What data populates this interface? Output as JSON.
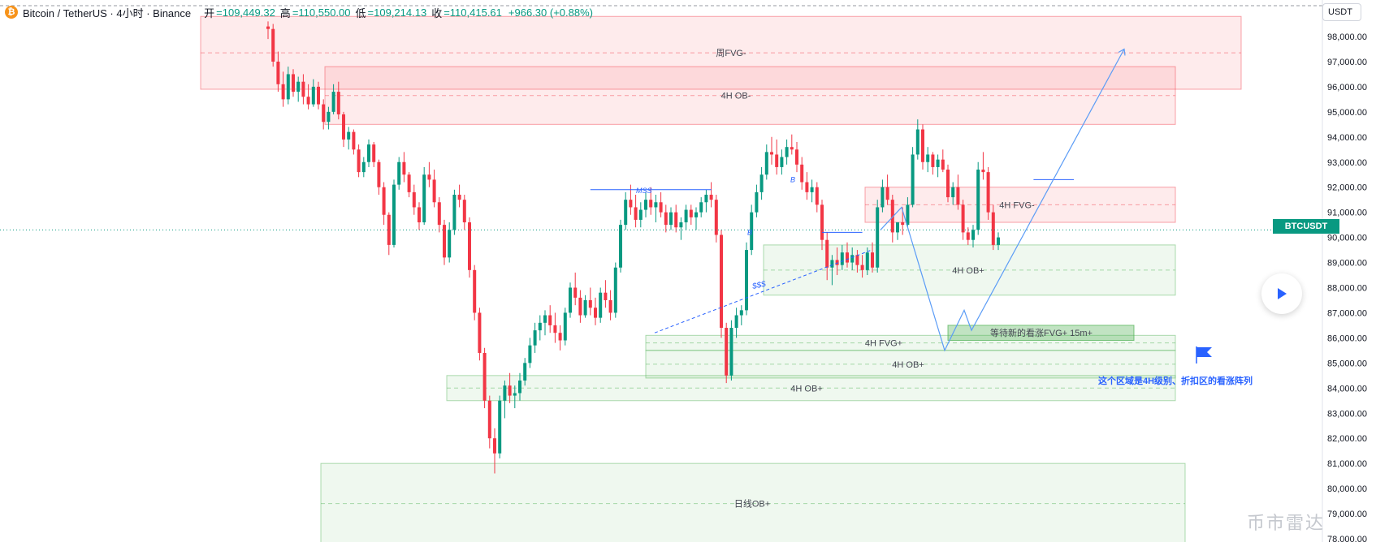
{
  "header": {
    "symbol": "Bitcoin / TetherUS · 4小时 · Binance",
    "open_label": "开",
    "open_value": "=109,449.32",
    "high_label": "高",
    "high_value": "=110,550.00",
    "low_label": "低",
    "low_value": "=109,214.13",
    "close_label": "收",
    "close_value": "=110,415.61",
    "change": "+966.30 (+0.88%)"
  },
  "currency_button": "USDT",
  "price_tag": "BTCUSDT",
  "watermark": "币市雷达",
  "colors": {
    "up": "#089981",
    "down": "#f23645",
    "bearish_zone": "#f23645",
    "bullish_zone": "#4caf50",
    "projection": "#5b9cf6",
    "annotation_text": "#2962ff"
  },
  "chart_data": {
    "type": "candlestick",
    "y_axis": {
      "range": [
        77800,
        98600
      ],
      "ticks": [
        "98,000.00",
        "97,000.00",
        "96,000.00",
        "95,000.00",
        "94,000.00",
        "93,000.00",
        "92,000.00",
        "91,000.00",
        "90,000.00",
        "89,000.00",
        "88,000.00",
        "87,000.00",
        "86,000.00",
        "85,000.00",
        "84,000.00",
        "83,000.00",
        "82,000.00",
        "81,000.00",
        "80,000.00",
        "79,000.00",
        "78,000.00"
      ],
      "position": "right"
    },
    "current_price": 90300,
    "candle_count": 189,
    "candles": [
      [
        98400,
        98600,
        97900,
        98300
      ],
      [
        98300,
        98500,
        96800,
        97000
      ],
      [
        97000,
        97400,
        95800,
        96100
      ],
      [
        96100,
        96600,
        95200,
        95500
      ],
      [
        95500,
        96800,
        95300,
        96500
      ],
      [
        96500,
        96700,
        95600,
        95800
      ],
      [
        95800,
        96400,
        95400,
        96200
      ],
      [
        96200,
        96500,
        95300,
        95600
      ],
      [
        95600,
        96100,
        95100,
        95300
      ],
      [
        95300,
        96300,
        95200,
        96000
      ],
      [
        96000,
        96200,
        95100,
        95300
      ],
      [
        95300,
        95500,
        94300,
        94600
      ],
      [
        94600,
        95200,
        94300,
        95000
      ],
      [
        95000,
        96100,
        94900,
        95800
      ],
      [
        95800,
        96200,
        94700,
        94900
      ],
      [
        94900,
        95000,
        93600,
        93900
      ],
      [
        93900,
        94400,
        93500,
        94200
      ],
      [
        94200,
        94300,
        93300,
        93500
      ],
      [
        93500,
        93700,
        92400,
        92600
      ],
      [
        92600,
        93200,
        92400,
        93000
      ],
      [
        93000,
        93900,
        92800,
        93700
      ],
      [
        93700,
        93800,
        92800,
        93000
      ],
      [
        93000,
        93100,
        91700,
        92000
      ],
      [
        92000,
        92200,
        90500,
        90900
      ],
      [
        90900,
        91000,
        89300,
        89700
      ],
      [
        89700,
        92300,
        89600,
        92100
      ],
      [
        92100,
        93200,
        91900,
        93000
      ],
      [
        93000,
        93400,
        92200,
        92500
      ],
      [
        92500,
        92600,
        91600,
        91800
      ],
      [
        91800,
        92100,
        90900,
        91200
      ],
      [
        91200,
        91400,
        90300,
        90600
      ],
      [
        90600,
        92800,
        90500,
        92500
      ],
      [
        92500,
        93000,
        92000,
        92300
      ],
      [
        92300,
        92700,
        91200,
        91400
      ],
      [
        91400,
        91600,
        90200,
        90500
      ],
      [
        90500,
        90700,
        88900,
        89200
      ],
      [
        89200,
        90600,
        89000,
        90300
      ],
      [
        90300,
        91900,
        90100,
        91700
      ],
      [
        91700,
        92100,
        91200,
        91500
      ],
      [
        91500,
        91700,
        90300,
        90600
      ],
      [
        90600,
        90800,
        88400,
        88700
      ],
      [
        88700,
        88900,
        86700,
        87000
      ],
      [
        87000,
        87200,
        85100,
        85400
      ],
      [
        85400,
        85600,
        83200,
        83500
      ],
      [
        83500,
        83700,
        81600,
        82000
      ],
      [
        82000,
        82400,
        80600,
        81400
      ],
      [
        81400,
        83700,
        81200,
        83500
      ],
      [
        83500,
        84300,
        82800,
        84100
      ],
      [
        84100,
        84600,
        83400,
        83700
      ],
      [
        83700,
        84100,
        83200,
        83800
      ],
      [
        83800,
        84600,
        83500,
        84300
      ],
      [
        84300,
        85200,
        84100,
        85000
      ],
      [
        85000,
        86000,
        84800,
        85700
      ],
      [
        85700,
        86600,
        85400,
        86300
      ],
      [
        86300,
        86900,
        85900,
        86600
      ],
      [
        86600,
        87100,
        86100,
        86900
      ],
      [
        86900,
        87300,
        86200,
        86500
      ],
      [
        86500,
        87000,
        85800,
        86200
      ],
      [
        86200,
        86500,
        85500,
        85900
      ],
      [
        85900,
        87200,
        85700,
        87000
      ],
      [
        87000,
        88200,
        86800,
        88000
      ],
      [
        88000,
        88600,
        87300,
        87600
      ],
      [
        87600,
        87900,
        86600,
        86900
      ],
      [
        86900,
        87700,
        86800,
        87500
      ],
      [
        87500,
        88000,
        86900,
        87200
      ],
      [
        87200,
        87600,
        86500,
        86800
      ],
      [
        86800,
        88000,
        86600,
        87800
      ],
      [
        87800,
        88300,
        87200,
        87500
      ],
      [
        87500,
        87900,
        86700,
        87000
      ],
      [
        87000,
        89000,
        86800,
        88800
      ],
      [
        88800,
        90700,
        88600,
        90500
      ],
      [
        90500,
        91800,
        90300,
        91500
      ],
      [
        91500,
        92100,
        90900,
        91200
      ],
      [
        91200,
        91700,
        90400,
        90700
      ],
      [
        90700,
        91400,
        90400,
        91100
      ],
      [
        91100,
        91800,
        90800,
        91500
      ],
      [
        91500,
        92000,
        90900,
        91200
      ],
      [
        91200,
        91700,
        90600,
        91400
      ],
      [
        91400,
        91800,
        90800,
        91000
      ],
      [
        91000,
        91300,
        90200,
        90500
      ],
      [
        90500,
        91200,
        90300,
        91000
      ],
      [
        91000,
        91300,
        90200,
        90400
      ],
      [
        90400,
        90800,
        89900,
        90600
      ],
      [
        90600,
        91300,
        90300,
        91100
      ],
      [
        91100,
        91300,
        90500,
        90800
      ],
      [
        90800,
        91200,
        90300,
        91000
      ],
      [
        91000,
        91600,
        90800,
        91400
      ],
      [
        91400,
        91900,
        91000,
        91700
      ],
      [
        91700,
        92200,
        91200,
        91500
      ],
      [
        91500,
        91700,
        89800,
        90100
      ],
      [
        90100,
        90300,
        86000,
        86400
      ],
      [
        86400,
        86600,
        84200,
        84500
      ],
      [
        84500,
        86700,
        84300,
        86400
      ],
      [
        86400,
        87200,
        86000,
        86900
      ],
      [
        86900,
        87300,
        86500,
        87100
      ],
      [
        87100,
        89800,
        86900,
        89500
      ],
      [
        89500,
        91300,
        89300,
        91000
      ],
      [
        91000,
        92100,
        90800,
        91800
      ],
      [
        91800,
        92800,
        91500,
        92500
      ],
      [
        92500,
        93700,
        92300,
        93400
      ],
      [
        93400,
        94000,
        92900,
        93300
      ],
      [
        93300,
        93900,
        92500,
        92800
      ],
      [
        92800,
        93500,
        92500,
        93200
      ],
      [
        93200,
        93900,
        92900,
        93600
      ],
      [
        93600,
        94100,
        93300,
        93500
      ],
      [
        93500,
        93800,
        92600,
        92900
      ],
      [
        92900,
        93200,
        91900,
        92200
      ],
      [
        92200,
        92600,
        91500,
        91800
      ],
      [
        91800,
        92300,
        91400,
        92000
      ],
      [
        92000,
        92200,
        91000,
        91300
      ],
      [
        91300,
        91500,
        89500,
        89900
      ],
      [
        89900,
        90200,
        88300,
        88800
      ],
      [
        88800,
        89300,
        88100,
        89100
      ],
      [
        89100,
        89600,
        88500,
        88900
      ],
      [
        88900,
        89700,
        88700,
        89400
      ],
      [
        89400,
        89800,
        88800,
        89000
      ],
      [
        89000,
        89600,
        88700,
        89300
      ],
      [
        89300,
        89500,
        88600,
        88900
      ],
      [
        88900,
        89300,
        88400,
        88700
      ],
      [
        88700,
        89600,
        88500,
        89400
      ],
      [
        89400,
        89800,
        88600,
        88800
      ],
      [
        88800,
        91500,
        88600,
        91200
      ],
      [
        91200,
        92300,
        91000,
        92000
      ],
      [
        92000,
        92500,
        91300,
        91500
      ],
      [
        91500,
        91700,
        89800,
        90200
      ],
      [
        90200,
        90400,
        89900,
        90600
      ],
      [
        90600,
        91200,
        90100,
        90500
      ],
      [
        90500,
        91600,
        90400,
        91300
      ],
      [
        91300,
        93600,
        91200,
        93300
      ],
      [
        93300,
        94700,
        93100,
        94300
      ],
      [
        94300,
        94500,
        92700,
        93000
      ],
      [
        93000,
        93600,
        92600,
        93300
      ],
      [
        93300,
        93400,
        92500,
        92800
      ],
      [
        92800,
        93300,
        92400,
        93100
      ],
      [
        93100,
        93500,
        92600,
        92700
      ],
      [
        92700,
        92900,
        91400,
        91600
      ],
      [
        91600,
        92200,
        91300,
        92000
      ],
      [
        92000,
        92500,
        91100,
        91300
      ],
      [
        91300,
        91500,
        89900,
        90200
      ],
      [
        90200,
        90400,
        89700,
        89900
      ],
      [
        89900,
        90500,
        89600,
        90300
      ],
      [
        90300,
        93000,
        90100,
        92700
      ],
      [
        92700,
        93400,
        92300,
        92600
      ],
      [
        92600,
        92800,
        90700,
        91000
      ],
      [
        91000,
        91300,
        89500,
        89700
      ],
      [
        89700,
        90200,
        89500,
        90000
      ]
    ],
    "zones": [
      {
        "label": "周FVG-",
        "kind": "bearish",
        "bottom": 95900,
        "top": 98800
      },
      {
        "label": "4H OB-",
        "kind": "bearish",
        "bottom": 94500,
        "top": 96800
      },
      {
        "label": "4H FVG-",
        "kind": "bearish",
        "bottom": 90600,
        "top": 92000
      },
      {
        "label": "4H OB+",
        "kind": "bullish",
        "bottom": 87700,
        "top": 89700
      },
      {
        "label": "4H FVG+",
        "kind": "bullish",
        "bottom": 85500,
        "top": 86100
      },
      {
        "label": "4H OB+",
        "kind": "bullish",
        "bottom": 84400,
        "top": 85500
      },
      {
        "label": "4H OB+",
        "kind": "bullish",
        "bottom": 83500,
        "top": 84500
      },
      {
        "label": "日线OB+",
        "kind": "bullish",
        "bottom": 77800,
        "top": 81000
      },
      {
        "label": "等待新的看涨FVG+ 15m+",
        "kind": "bullish_strong",
        "bottom": 85900,
        "top": 86500
      }
    ],
    "annotations": [
      {
        "text": "MSS",
        "price": 91900
      },
      {
        "text": "B",
        "price": 90200
      },
      {
        "text": "B",
        "price": 92300
      },
      {
        "text": "$$$",
        "price": 88100
      },
      {
        "text": "这个区域是4H级别、折扣区的看涨阵列",
        "price": 84300
      }
    ],
    "projection_path": [
      90300,
      91200,
      85500,
      87100,
      86300,
      97500
    ]
  }
}
